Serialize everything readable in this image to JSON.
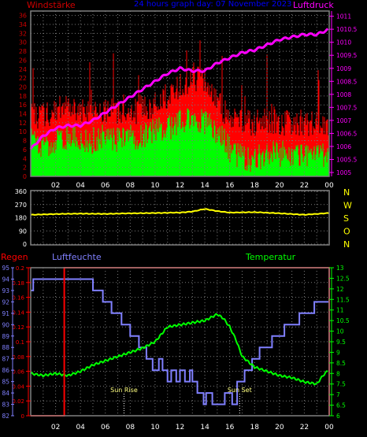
{
  "header": {
    "left_label": "Windstärke",
    "title": "24 hours graph day: 07 November 2023",
    "right_label": "Luftdruck"
  },
  "colors": {
    "frame": "#808080",
    "grid": "#7a7a7a",
    "wind_label": "#d00000",
    "title": "#0000ff",
    "pressure": "#ff00ff",
    "wind_gust": "#ff0000",
    "wind_speed": "#00ff00",
    "direction": "#ffff00",
    "direction_labels": "#ffff00",
    "rain": "#ff0000",
    "humidity": "#8080ff",
    "temperature": "#00ff00",
    "rain_axis": "#ff0000",
    "humidity_axis": "#8080ff",
    "temp_axis": "#00ff00",
    "sun": "#ffff80"
  },
  "chart_data": [
    {
      "type": "bar",
      "name": "wind",
      "x_ticks": [
        "02",
        "04",
        "06",
        "08",
        "10",
        "12",
        "14",
        "16",
        "18",
        "20",
        "22",
        "00"
      ],
      "y_left_ticks": [
        "0",
        "2",
        "4",
        "6",
        "8",
        "10",
        "12",
        "14",
        "16",
        "18",
        "20",
        "22",
        "24",
        "26",
        "28",
        "30",
        "32",
        "34",
        "36"
      ],
      "y_left_range": [
        0,
        37
      ],
      "y_right_ticks": [
        "1005",
        "1005.5",
        "1006",
        "1006.5",
        "1007",
        "1007.5",
        "1008",
        "1008.5",
        "1009",
        "1009.5",
        "1010",
        "1010.5",
        "1011"
      ],
      "y_right_range": [
        1004.85,
        1011.2
      ],
      "series": [
        {
          "kind": "gust",
          "hours": [
            0,
            1,
            2,
            3,
            4,
            5,
            6,
            7,
            8,
            9,
            10,
            11,
            12,
            13,
            14,
            15,
            16,
            17,
            18,
            19,
            20,
            21,
            22,
            23,
            24
          ],
          "values": [
            14,
            13,
            15,
            16,
            15,
            14,
            15,
            14,
            14,
            15,
            16,
            18,
            20,
            22,
            22,
            17,
            13,
            12,
            12,
            12,
            12,
            12,
            12,
            12,
            12
          ]
        },
        {
          "kind": "speed",
          "hours": [
            0,
            1,
            2,
            3,
            4,
            5,
            6,
            7,
            8,
            9,
            10,
            11,
            12,
            13,
            14,
            15,
            16,
            17,
            18,
            19,
            20,
            21,
            22,
            23,
            24
          ],
          "values": [
            8,
            7,
            8,
            9,
            8,
            8,
            9,
            8,
            9,
            9,
            10,
            11,
            12,
            13,
            12,
            10,
            6,
            4,
            4,
            5,
            5,
            5,
            5,
            4,
            5
          ]
        },
        {
          "kind": "pressure",
          "hours": [
            0,
            1,
            2,
            3,
            4,
            5,
            6,
            7,
            8,
            9,
            10,
            11,
            12,
            13,
            14,
            15,
            16,
            17,
            18,
            19,
            20,
            21,
            22,
            23,
            24
          ],
          "values": [
            1005.9,
            1006.4,
            1006.7,
            1006.8,
            1006.8,
            1007.0,
            1007.3,
            1007.6,
            1007.9,
            1008.2,
            1008.5,
            1008.8,
            1009.0,
            1008.9,
            1008.9,
            1009.2,
            1009.4,
            1009.6,
            1009.7,
            1009.9,
            1010.1,
            1010.2,
            1010.3,
            1010.3,
            1010.5
          ]
        }
      ]
    },
    {
      "type": "line",
      "name": "wind-direction",
      "x_ticks": [
        "02",
        "04",
        "06",
        "08",
        "10",
        "12",
        "14",
        "16",
        "18",
        "20",
        "22",
        "00"
      ],
      "y_ticks": [
        "0",
        "90",
        "180",
        "270",
        "360"
      ],
      "y_range": [
        0,
        360
      ],
      "compass_labels": [
        "N",
        "W",
        "S",
        "O",
        "N"
      ],
      "series": [
        {
          "kind": "direction",
          "hours": [
            0,
            2,
            4,
            6,
            8,
            10,
            12,
            13,
            14,
            15,
            16,
            18,
            20,
            22,
            24
          ],
          "values": [
            200,
            205,
            208,
            206,
            210,
            212,
            215,
            222,
            240,
            225,
            215,
            218,
            210,
            200,
            212
          ]
        }
      ]
    },
    {
      "type": "line",
      "name": "rain-humidity-temperature",
      "labels": {
        "rain": "Regen",
        "humidity": "Luftfeuchte",
        "temperature": "Temperatur"
      },
      "x_ticks": [
        "02",
        "04",
        "06",
        "08",
        "10",
        "12",
        "14",
        "16",
        "18",
        "20",
        "22",
        "00"
      ],
      "rain_ticks": [
        "0",
        "0.02",
        "0.04",
        "0.06",
        "0.08",
        "0.1",
        "0.12",
        "0.14",
        "0.16",
        "0.18",
        "0.2"
      ],
      "rain_range": [
        0,
        0.2
      ],
      "humidity_ticks": [
        "82",
        "83",
        "84",
        "85",
        "86",
        "87",
        "88",
        "89",
        "90",
        "91",
        "92",
        "93",
        "94",
        "95"
      ],
      "humidity_range": [
        82,
        95
      ],
      "temp_ticks": [
        "6",
        "6.5",
        "7",
        "7.5",
        "8",
        "8.5",
        "9",
        "9.5",
        "10",
        "10.5",
        "11",
        "11.5",
        "12",
        "12.5",
        "13"
      ],
      "temp_range": [
        6,
        13
      ],
      "sunrise_label": "Sun Rise",
      "sunset_label": "Sun Set",
      "sunrise_hour": 7.5,
      "sunset_hour": 16.8,
      "series": [
        {
          "kind": "rain",
          "hours": [
            0,
            2.7,
            2.7,
            24,
            24
          ],
          "values": [
            0,
            0,
            0.2,
            0.2,
            0
          ]
        },
        {
          "kind": "humidity",
          "hours": [
            0,
            0.2,
            0.2,
            5,
            5,
            5.8,
            5.8,
            6.5,
            6.5,
            7.3,
            7.3,
            8,
            8,
            8.7,
            8.7,
            9.3,
            9.3,
            9.8,
            9.8,
            10.3,
            10.3,
            10.6,
            10.6,
            11,
            11,
            11.3,
            11.3,
            11.7,
            11.7,
            12,
            12,
            12.4,
            12.4,
            12.8,
            12.8,
            13,
            13,
            13.4,
            13.4,
            13.9,
            13.9,
            14.1,
            14.1,
            14.6,
            14.6,
            15.6,
            15.6,
            16.2,
            16.2,
            16.6,
            16.6,
            17.2,
            17.2,
            17.8,
            17.8,
            18.4,
            18.4,
            19.4,
            19.4,
            20.4,
            20.4,
            21.6,
            21.6,
            22.8,
            22.8,
            24
          ],
          "values": [
            93,
            93,
            94,
            94,
            93,
            93,
            92,
            92,
            91,
            91,
            90,
            90,
            89,
            89,
            88,
            88,
            87,
            87,
            86,
            86,
            87,
            87,
            86,
            86,
            85,
            85,
            86,
            86,
            85,
            85,
            86,
            86,
            85,
            85,
            86,
            86,
            85,
            85,
            84,
            84,
            83,
            83,
            84,
            84,
            83,
            83,
            84,
            84,
            83,
            83,
            85,
            85,
            86,
            86,
            87,
            87,
            88,
            88,
            89,
            89,
            90,
            90,
            91,
            91,
            92,
            92
          ]
        },
        {
          "kind": "temperature",
          "hours": [
            0,
            1,
            2,
            3,
            4,
            5,
            6,
            7,
            8,
            9,
            10,
            11,
            12,
            13,
            14,
            15,
            15.5,
            16,
            16.5,
            17,
            18,
            19,
            20,
            21,
            22,
            23,
            23.5,
            24
          ],
          "values": [
            8.0,
            7.9,
            8.0,
            7.9,
            8.1,
            8.4,
            8.6,
            8.8,
            9.0,
            9.2,
            9.5,
            10.2,
            10.3,
            10.4,
            10.5,
            10.8,
            10.6,
            10.2,
            9.6,
            8.8,
            8.3,
            8.1,
            7.9,
            7.8,
            7.6,
            7.5,
            7.9,
            8.2
          ]
        }
      ]
    }
  ]
}
